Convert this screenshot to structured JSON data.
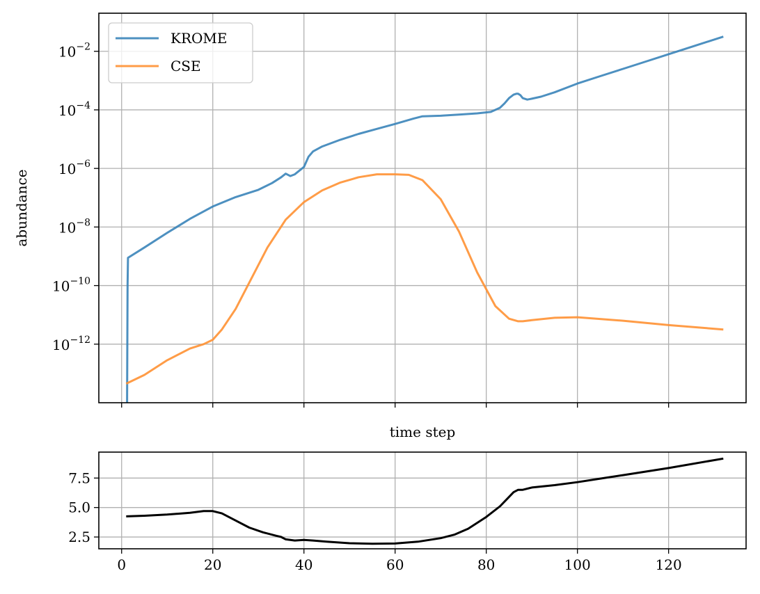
{
  "chart_data": [
    {
      "type": "line",
      "yscale": "log",
      "xlim": [
        -5,
        137
      ],
      "ylim_exponent": [
        -14,
        -0.7
      ],
      "xticks": [
        0,
        20,
        40,
        60,
        80,
        100,
        120
      ],
      "xtick_labels_visible": false,
      "yticks": [
        {
          "mantissa": "10",
          "exponent": "−2",
          "exp": -2
        },
        {
          "mantissa": "10",
          "exponent": "−4",
          "exp": -4
        },
        {
          "mantissa": "10",
          "exponent": "−6",
          "exp": -6
        },
        {
          "mantissa": "10",
          "exponent": "−8",
          "exp": -8
        },
        {
          "mantissa": "10",
          "exponent": "−10",
          "exp": -10
        },
        {
          "mantissa": "10",
          "exponent": "−12",
          "exp": -12
        }
      ],
      "xlabel": "time step",
      "ylabel": "abundance",
      "grid": true,
      "legend_position": "top-left",
      "series": [
        {
          "name": "KROME",
          "color": "#3a84b9",
          "x": [
            1.2,
            1.3,
            1.4,
            5,
            10,
            15,
            20,
            25,
            30,
            33,
            35,
            36,
            37,
            38,
            40,
            41,
            42,
            44,
            48,
            52,
            56,
            60,
            64,
            66,
            70,
            74,
            78,
            81,
            83,
            84,
            85,
            86,
            86.6,
            87,
            87.5,
            88,
            89,
            90,
            92,
            95,
            100,
            105,
            110,
            115,
            120,
            125,
            132
          ],
          "log10_y": [
            -14.3,
            -10.0,
            -9.05,
            -8.7,
            -8.2,
            -7.72,
            -7.3,
            -6.98,
            -6.73,
            -6.5,
            -6.3,
            -6.18,
            -6.26,
            -6.2,
            -5.95,
            -5.6,
            -5.42,
            -5.25,
            -5.02,
            -4.82,
            -4.65,
            -4.48,
            -4.3,
            -4.22,
            -4.2,
            -4.16,
            -4.12,
            -4.07,
            -3.93,
            -3.78,
            -3.6,
            -3.48,
            -3.45,
            -3.45,
            -3.5,
            -3.6,
            -3.65,
            -3.62,
            -3.55,
            -3.4,
            -3.1,
            -2.85,
            -2.6,
            -2.35,
            -2.1,
            -1.85,
            -1.5
          ]
        },
        {
          "name": "CSE",
          "color": "#ff9133",
          "x": [
            1,
            5,
            10,
            15,
            18,
            20,
            22,
            25,
            28,
            32,
            36,
            40,
            44,
            48,
            52,
            56,
            60,
            63,
            66,
            70,
            74,
            78,
            82,
            85,
            87,
            88,
            90,
            95,
            100,
            110,
            120,
            132
          ],
          "log10_y": [
            -13.35,
            -13.05,
            -12.55,
            -12.15,
            -12.0,
            -11.85,
            -11.5,
            -10.8,
            -9.9,
            -8.7,
            -7.75,
            -7.15,
            -6.75,
            -6.48,
            -6.3,
            -6.2,
            -6.2,
            -6.22,
            -6.4,
            -7.05,
            -8.15,
            -9.55,
            -10.7,
            -11.13,
            -11.22,
            -11.22,
            -11.18,
            -11.1,
            -11.08,
            -11.2,
            -11.35,
            -11.5
          ]
        }
      ]
    },
    {
      "type": "line",
      "xlim": [
        -5,
        137
      ],
      "ylim": [
        1.5,
        9.7
      ],
      "xticks": [
        0,
        20,
        40,
        60,
        80,
        100,
        120
      ],
      "xtick_labels": [
        "0",
        "20",
        "40",
        "60",
        "80",
        "100",
        "120"
      ],
      "yticks": [
        2.5,
        5.0,
        7.5
      ],
      "ytick_labels": [
        "2.5",
        "5.0",
        "7.5"
      ],
      "grid": true,
      "series": [
        {
          "color": "#000000",
          "x": [
            1,
            5,
            10,
            15,
            18,
            20,
            22,
            25,
            28,
            31,
            34,
            35,
            36,
            38,
            40,
            42,
            45,
            50,
            55,
            60,
            65,
            70,
            73,
            76,
            80,
            83,
            85,
            86,
            87,
            88,
            90,
            95,
            100,
            105,
            110,
            120,
            132
          ],
          "y": [
            4.25,
            4.3,
            4.4,
            4.55,
            4.7,
            4.7,
            4.5,
            3.9,
            3.3,
            2.9,
            2.6,
            2.5,
            2.3,
            2.2,
            2.25,
            2.2,
            2.1,
            1.97,
            1.93,
            1.95,
            2.1,
            2.4,
            2.7,
            3.2,
            4.2,
            5.1,
            5.9,
            6.3,
            6.5,
            6.5,
            6.7,
            6.9,
            7.15,
            7.45,
            7.75,
            8.35,
            9.15
          ]
        }
      ]
    }
  ]
}
